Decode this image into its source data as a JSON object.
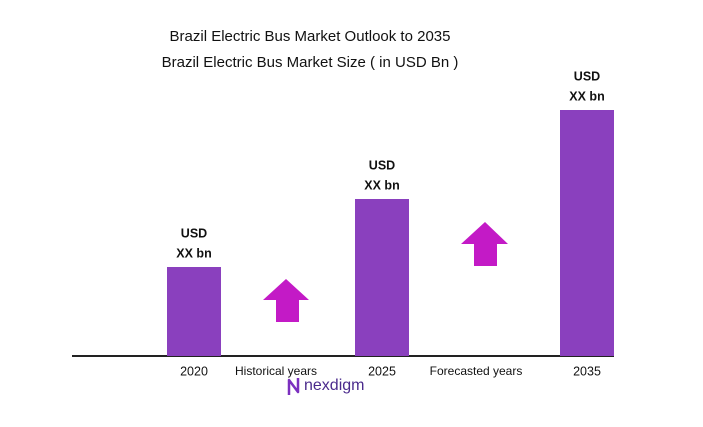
{
  "chart_data": {
    "type": "bar",
    "title": "Brazil Electric Bus Market Outlook to 2035",
    "subtitle": "Brazil Electric Bus Market Size ( in USD Bn )",
    "categories": [
      "2020",
      "2025",
      "2035"
    ],
    "values": [
      89,
      157,
      246
    ],
    "color": "#8a40be",
    "data_labels": [
      [
        "USD",
        "XX bn"
      ],
      [
        "USD",
        "XX bn"
      ],
      [
        "USD",
        "XX bn"
      ]
    ],
    "ylim": [
      0,
      256
    ],
    "annotations": [
      "Historical years",
      "Forecasted years"
    ]
  },
  "logo": "nexdigm"
}
